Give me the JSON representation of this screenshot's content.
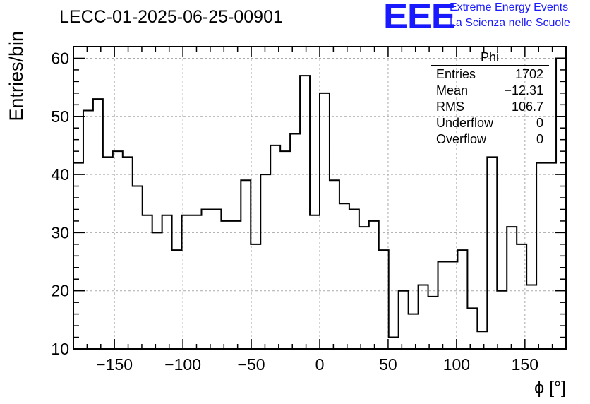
{
  "header": {
    "title": "LECC-01-2025-06-25-00901",
    "logo_text": "EEE",
    "logo_line1": "Extreme Energy Events",
    "logo_line2": "La Scienza nelle Scuole"
  },
  "stats_box": {
    "name": "Phi",
    "rows": [
      {
        "label": "Entries",
        "value": "1702"
      },
      {
        "label": "Mean",
        "value": "−12.31"
      },
      {
        "label": "RMS",
        "value": "106.7"
      },
      {
        "label": "Underflow",
        "value": "0"
      },
      {
        "label": "Overflow",
        "value": "0"
      }
    ]
  },
  "chart_data": {
    "type": "histogram",
    "title": "LECC-01-2025-06-25-00901",
    "xlabel": "ϕ [°]",
    "ylabel": "Entries/bin",
    "xlim": [
      -180,
      180
    ],
    "ylim": [
      10,
      62
    ],
    "bin_width": 7.2,
    "grid": true,
    "xticks": [
      -150,
      -100,
      -50,
      0,
      50,
      100,
      150
    ],
    "xtick_labels": [
      "−150",
      "−100",
      "−50",
      "0",
      "50",
      "100",
      "150"
    ],
    "yticks": [
      10,
      20,
      30,
      40,
      50,
      60
    ],
    "ytick_labels": [
      "10",
      "20",
      "30",
      "40",
      "50",
      "60"
    ],
    "values": [
      42,
      51,
      53,
      43,
      44,
      43,
      38,
      33,
      30,
      33,
      27,
      33,
      33,
      34,
      34,
      32,
      32,
      39,
      28,
      40,
      45,
      44,
      47,
      57,
      33,
      54,
      39,
      35,
      34,
      31,
      32,
      27,
      12,
      20,
      16,
      21,
      19,
      25,
      25,
      27,
      17,
      13,
      43,
      20,
      31,
      28,
      21,
      42,
      42,
      60
    ]
  }
}
